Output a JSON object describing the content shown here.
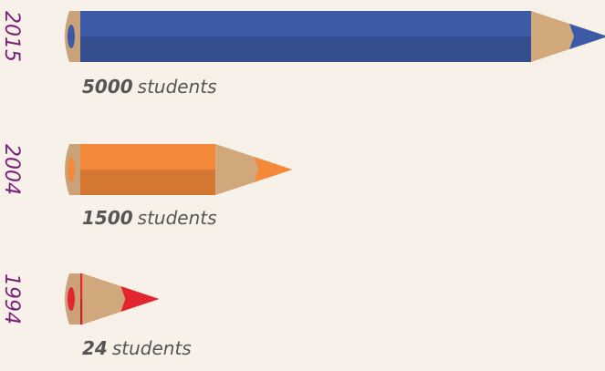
{
  "chart_data": {
    "type": "pencil-bar",
    "categories": [
      "2015",
      "2004",
      "1994"
    ],
    "values": [
      5000,
      1500,
      24
    ],
    "unit_label": "students",
    "colors": [
      "#3c5aa6",
      "#f4893a",
      "#e2252f"
    ]
  }
}
